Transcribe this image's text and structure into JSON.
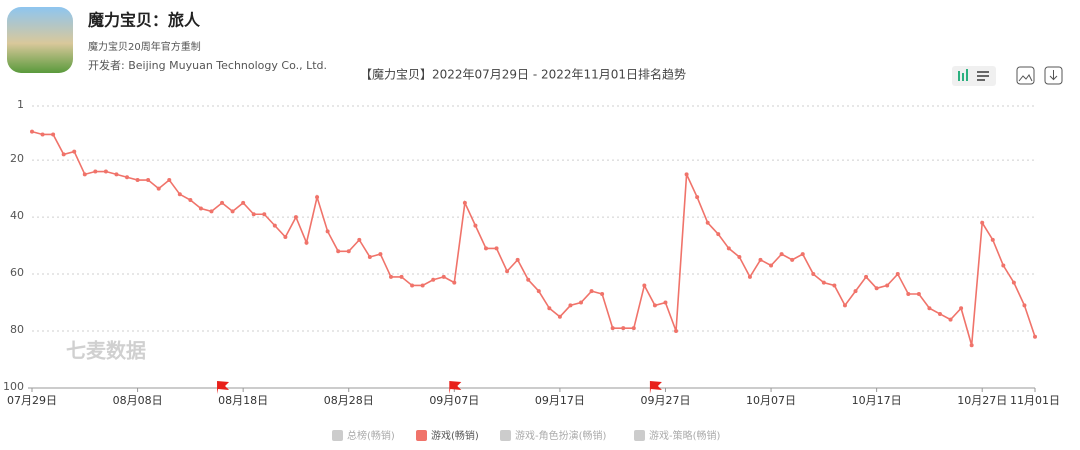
{
  "app": {
    "name": "魔力宝贝：旅人",
    "subtitle": "魔力宝贝20周年官方重制",
    "developer": "开发者: Beijing Muyuan Technology Co., Ltd."
  },
  "chart_data": {
    "type": "line",
    "title": "【魔力宝贝】2022年07月29日 - 2022年11月01日排名趋势",
    "watermark": "七麦数据",
    "x": [
      "07月29日",
      "07月30日",
      "07月31日",
      "08月01日",
      "08月02日",
      "08月03日",
      "08月04日",
      "08月05日",
      "08月06日",
      "08月07日",
      "08月08日",
      "08月09日",
      "08月10日",
      "08月11日",
      "08月12日",
      "08月13日",
      "08月14日",
      "08月15日",
      "08月16日",
      "08月17日",
      "08月18日",
      "08月19日",
      "08月20日",
      "08月21日",
      "08月22日",
      "08月23日",
      "08月24日",
      "08月25日",
      "08月26日",
      "08月27日",
      "08月28日",
      "08月29日",
      "08月30日",
      "08月31日",
      "09月01日",
      "09月02日",
      "09月03日",
      "09月04日",
      "09月05日",
      "09月06日",
      "09月07日",
      "09月08日",
      "09月09日",
      "09月10日",
      "09月11日",
      "09月12日",
      "09月13日",
      "09月14日",
      "09月15日",
      "09月16日",
      "09月17日",
      "09月18日",
      "09月19日",
      "09月20日",
      "09月21日",
      "09月22日",
      "09月23日",
      "09月24日",
      "09月25日",
      "09月26日",
      "09月27日",
      "09月28日",
      "09月29日",
      "09月30日",
      "10月01日",
      "10月02日",
      "10月03日",
      "10月04日",
      "10月05日",
      "10月06日",
      "10月07日",
      "10月08日",
      "10月09日",
      "10月10日",
      "10月11日",
      "10月12日",
      "10月13日",
      "10月14日",
      "10月15日",
      "10月16日",
      "10月17日",
      "10月18日",
      "10月19日",
      "10月20日",
      "10月21日",
      "10月22日",
      "10月23日",
      "10月24日",
      "10月25日",
      "10月26日",
      "10月27日",
      "10月28日",
      "10月29日",
      "10月30日",
      "10月31日",
      "11月01日"
    ],
    "xticks": [
      "07月29日",
      "08月08日",
      "08月18日",
      "08月28日",
      "09月07日",
      "09月17日",
      "09月27日",
      "10月07日",
      "10月17日",
      "10月27日",
      "11月01日"
    ],
    "series": [
      {
        "name": "游戏(畅销)",
        "color": "#f0736a",
        "values": [
          10,
          11,
          11,
          18,
          17,
          25,
          24,
          24,
          25,
          26,
          27,
          27,
          30,
          27,
          32,
          34,
          37,
          38,
          35,
          38,
          35,
          39,
          39,
          43,
          47,
          40,
          49,
          33,
          45,
          52,
          52,
          48,
          54,
          53,
          61,
          61,
          64,
          64,
          62,
          61,
          63,
          35,
          43,
          51,
          51,
          59,
          55,
          62,
          66,
          72,
          75,
          71,
          70,
          66,
          67,
          79,
          79,
          79,
          64,
          71,
          70,
          80,
          25,
          33,
          42,
          46,
          51,
          54,
          61,
          55,
          57,
          53,
          55,
          53,
          60,
          63,
          64,
          71,
          66,
          61,
          65,
          64,
          60,
          67,
          67,
          72,
          74,
          76,
          72,
          85,
          42,
          48,
          57,
          63,
          71,
          82
        ]
      }
    ],
    "legend_inactive": [
      {
        "name": "总榜(畅销)",
        "color": "#cccccc"
      },
      {
        "name": "游戏-角色扮演(畅销)",
        "color": "#cccccc"
      },
      {
        "name": "游戏-策略(畅销)",
        "color": "#cccccc"
      }
    ],
    "markers_x": [
      "08月16日",
      "09月07日",
      "09月26日"
    ],
    "marker_color": "#e8201a",
    "ylim": [
      1,
      100
    ],
    "y_inverted": true,
    "yticks": [
      1,
      20,
      40,
      60,
      80,
      100
    ],
    "grid": true
  }
}
